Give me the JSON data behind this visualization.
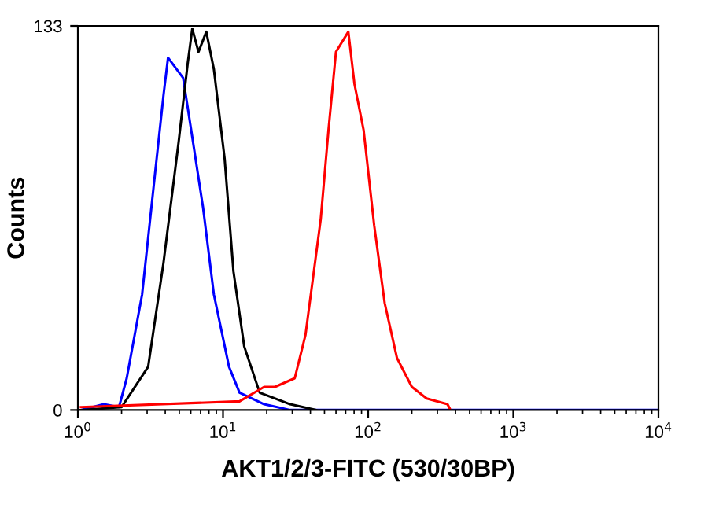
{
  "chart_data": {
    "type": "line",
    "xlabel": "AKT1/2/3-FITC (530/30BP)",
    "ylabel": "Counts",
    "log": "x",
    "xlim": [
      1,
      10000
    ],
    "xticks": [
      {
        "value": 1,
        "label": "10$^{0}$"
      },
      {
        "value": 10,
        "label": "10$^{1}$"
      },
      {
        "value": 100,
        "label": "10$^{2}$"
      },
      {
        "value": 1000,
        "label": "10$^{3}$"
      },
      {
        "value": 10000,
        "label": "10$^{4}$"
      }
    ],
    "ylim": [
      0,
      133
    ],
    "yticks": [
      0,
      133
    ],
    "grid": false,
    "marker": "none",
    "line_style": "solid",
    "series": [
      {
        "color": "#0000ff",
        "x": [
          1.05,
          1.51,
          1.92,
          2.17,
          2.77,
          3.32,
          3.89,
          4.18,
          5.31,
          5.99,
          7.29,
          8.65,
          11.0,
          13.0,
          19.2,
          29.0,
          10000
        ],
        "values": [
          0,
          2,
          1,
          11,
          40,
          77,
          109,
          122,
          115,
          98,
          70,
          40,
          15,
          6,
          2,
          0,
          0
        ]
      },
      {
        "color": "#000000",
        "x": [
          1.05,
          2.0,
          3.05,
          3.89,
          4.95,
          5.71,
          6.14,
          6.78,
          7.67,
          8.65,
          10.26,
          11.8,
          14.0,
          17.9,
          29.0,
          43.8
        ],
        "values": [
          0,
          1,
          15,
          51,
          93,
          120,
          132,
          124,
          131,
          118,
          87,
          48,
          22,
          6,
          2,
          0
        ]
      },
      {
        "color": "#ff0000",
        "x": [
          1.05,
          13.0,
          19.2,
          22.8,
          31.2,
          37.0,
          47.1,
          53.3,
          60.0,
          73.0,
          80.4,
          93.0,
          110,
          130,
          158,
          200,
          253,
          352,
          369
        ],
        "values": [
          1,
          3,
          8,
          8,
          11,
          26,
          66,
          97,
          124,
          131,
          113,
          97,
          64,
          37,
          18,
          8,
          4,
          2,
          0
        ]
      }
    ]
  }
}
